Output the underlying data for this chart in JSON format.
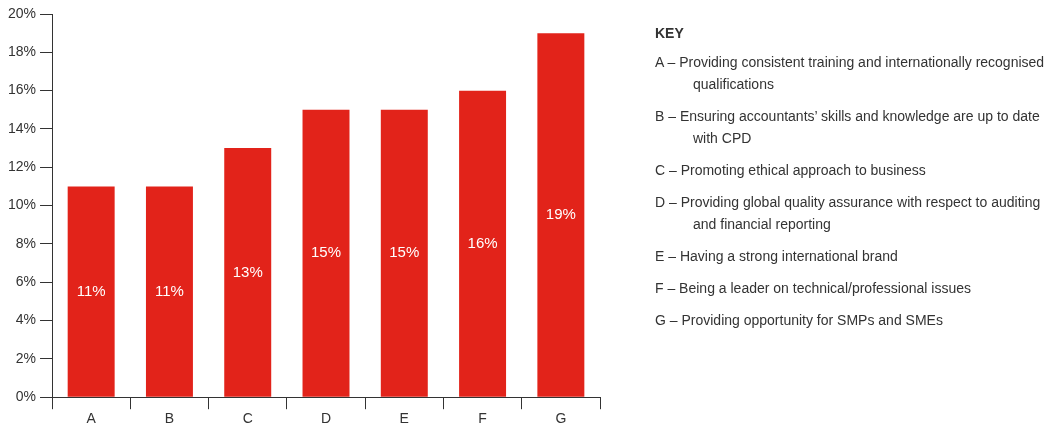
{
  "chart_data": {
    "type": "bar",
    "categories": [
      "A",
      "B",
      "C",
      "D",
      "E",
      "F",
      "G"
    ],
    "values": [
      11,
      11,
      13,
      15,
      15,
      16,
      19
    ],
    "color": "#e2231a",
    "ylim": [
      0,
      20
    ],
    "yticks": [
      {
        "value": 0,
        "label": "0%"
      },
      {
        "value": 2,
        "label": "2%"
      },
      {
        "value": 4,
        "label": "4%"
      },
      {
        "value": 6,
        "label": "6%"
      },
      {
        "value": 8,
        "label": "8%"
      },
      {
        "value": 10,
        "label": "10%"
      },
      {
        "value": 12,
        "label": "12%"
      },
      {
        "value": 14,
        "label": "14%"
      },
      {
        "value": 16,
        "label": "16%"
      },
      {
        "value": 18,
        "label": "18%"
      },
      {
        "value": 20,
        "label": "20%"
      }
    ],
    "value_labels": [
      "11%",
      "11%",
      "13%",
      "15%",
      "15%",
      "16%",
      "19%"
    ],
    "grid": false,
    "legend": false,
    "annotations": [
      "KEY",
      "A – Providing consistent training and internationally recognised qualifications",
      "B – Ensuring accountants’ skills and knowledge are up to date with CPD",
      "C – Promoting ethical approach to business",
      "D – Providing global quality assurance with respect to auditing and financial reporting",
      "E – Having a strong international brand",
      "F – Being a leader on technical/professional issues",
      "G – Providing opportunity for SMPs and SMEs"
    ]
  }
}
